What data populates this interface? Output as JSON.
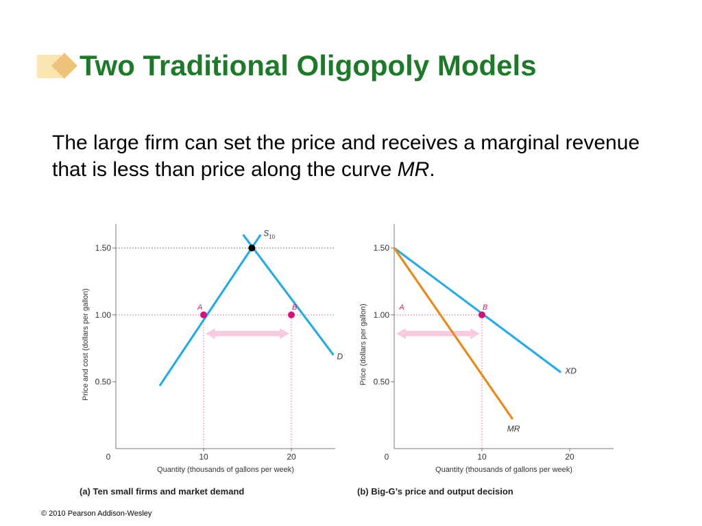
{
  "title": "Two Traditional Oligopoly Models",
  "body": {
    "text_before": "The large firm can set the price and receives a marginal revenue that is less than price along the curve ",
    "italic": "MR",
    "text_after": "."
  },
  "footer": "© 2010 Pearson Addison-Wesley",
  "colors": {
    "title": "#1e7a2a",
    "curve_blue": "#29abe2",
    "curve_orange": "#e8891c",
    "point_magenta": "#d0147a",
    "arrow_pink": "#f7cbe0",
    "guide_magenta": "#e05aa8",
    "guide_gray": "#555555",
    "deco_light": "#fbe6b3",
    "deco_dark": "#efc27a"
  },
  "chart_data": [
    {
      "type": "line",
      "caption": "(a) Ten small firms and market demand",
      "xlabel": "Quantity (thousands of gallons per week)",
      "ylabel": "Price and cost (dollars per gallon)",
      "xlim": [
        0,
        25
      ],
      "ylim": [
        0,
        1.68
      ],
      "x_ticks": [
        {
          "value": 10,
          "label": "10"
        },
        {
          "value": 20,
          "label": "20"
        }
      ],
      "y_ticks": [
        {
          "value": 0.5,
          "label": "0.50"
        },
        {
          "value": 1.0,
          "label": "1.00"
        },
        {
          "value": 1.5,
          "label": "1.50"
        }
      ],
      "origin_label": "0",
      "series": [
        {
          "name": "S10",
          "label_main": "S",
          "label_sub": "10",
          "color": "curve_blue",
          "x": [
            5,
            16.5
          ],
          "y": [
            0.47,
            1.6
          ]
        },
        {
          "name": "D",
          "label_main": "D",
          "label_sub": "",
          "color": "curve_blue",
          "x": [
            14.5,
            24.8
          ],
          "y": [
            1.6,
            0.7
          ]
        }
      ],
      "points": [
        {
          "label": "A",
          "x": 10,
          "y": 1.0,
          "color": "point_magenta"
        },
        {
          "label": "B",
          "x": 20,
          "y": 1.0,
          "color": "point_magenta"
        },
        {
          "label": "",
          "x": 15.5,
          "y": 1.5,
          "color": "black"
        }
      ],
      "guides": [
        {
          "x1": 0,
          "y1": 1.5,
          "x2": 25,
          "y2": 1.5,
          "color": "guide_gray"
        },
        {
          "x1": 0,
          "y1": 1.0,
          "x2": 25,
          "y2": 1.0,
          "color": "guide_magenta"
        },
        {
          "x1": 10,
          "y1": 0,
          "x2": 10,
          "y2": 1.0,
          "color": "guide_magenta"
        },
        {
          "x1": 20,
          "y1": 0,
          "x2": 20,
          "y2": 1.0,
          "color": "guide_magenta"
        }
      ],
      "double_arrow": {
        "x_from": 10,
        "x_to": 20,
        "y": 0.86
      }
    },
    {
      "type": "line",
      "caption": "(b) Big-G’s price and output decision",
      "xlabel": "Quantity (thousands of gallons per week)",
      "ylabel": "Price (dollars per gallon)",
      "xlim": [
        0,
        25
      ],
      "ylim": [
        0,
        1.68
      ],
      "x_ticks": [
        {
          "value": 10,
          "label": "10"
        },
        {
          "value": 20,
          "label": "20"
        }
      ],
      "y_ticks": [
        {
          "value": 0.5,
          "label": "0.50"
        },
        {
          "value": 1.0,
          "label": "1.00"
        },
        {
          "value": 1.5,
          "label": "1.50"
        }
      ],
      "origin_label": "0",
      "series": [
        {
          "name": "XD",
          "label_main": "XD",
          "label_sub": "",
          "color": "curve_blue",
          "x": [
            0,
            19
          ],
          "y": [
            1.5,
            0.57
          ]
        },
        {
          "name": "MR",
          "label_main": "MR",
          "label_sub": "",
          "color": "curve_orange",
          "x": [
            0,
            13.5
          ],
          "y": [
            1.5,
            0.22
          ]
        }
      ],
      "points": [
        {
          "label": "B",
          "x": 10,
          "y": 1.0,
          "color": "point_magenta"
        }
      ],
      "text_marks": [
        {
          "label": "A",
          "x": 0.5,
          "y": 1.0
        }
      ],
      "guides": [
        {
          "x1": 0,
          "y1": 1.0,
          "x2": 10,
          "y2": 1.0,
          "color": "guide_magenta"
        },
        {
          "x1": 10,
          "y1": 0,
          "x2": 10,
          "y2": 1.0,
          "color": "guide_magenta"
        }
      ],
      "double_arrow": {
        "x_from": 0,
        "x_to": 10,
        "y": 0.86
      }
    }
  ]
}
